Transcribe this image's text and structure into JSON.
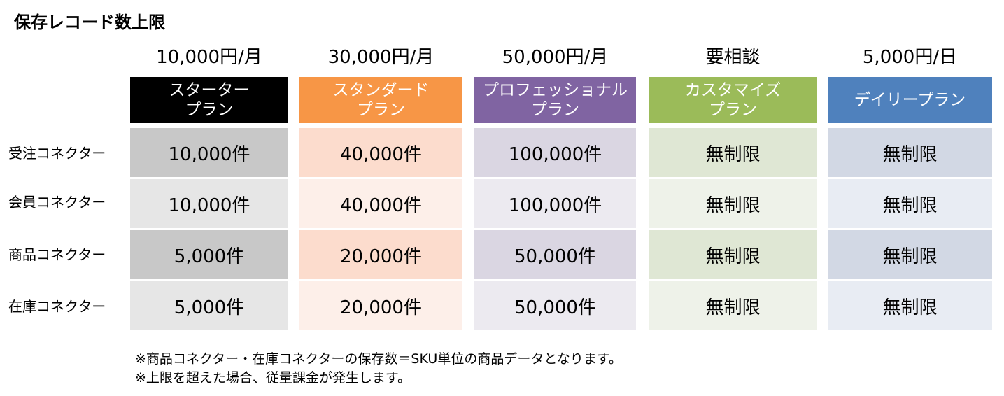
{
  "title": "保存レコード数上限",
  "plans": [
    {
      "price": "10,000円/月",
      "name": "スターター\nプラン",
      "header_color": "#000000",
      "cell_dark": "#c8c8c8",
      "cell_light": "#e6e6e6"
    },
    {
      "price": "30,000円/月",
      "name": "スタンダード\nプラン",
      "header_color": "#f79646",
      "cell_dark": "#fcdccd",
      "cell_light": "#fdefe9"
    },
    {
      "price": "50,000円/月",
      "name": "プロフェッショナル\nプラン",
      "header_color": "#8064a2",
      "cell_dark": "#dad6e2",
      "cell_light": "#eceaf0"
    },
    {
      "price": "要相談",
      "name": "カスタマイズ\nプラン",
      "header_color": "#9bbb59",
      "cell_dark": "#dfe7d4",
      "cell_light": "#eef2e9"
    },
    {
      "price": "5,000円/日",
      "name": "デイリープラン",
      "header_color": "#4f81bd",
      "cell_dark": "#d2d8e4",
      "cell_light": "#e8ecf3"
    }
  ],
  "rows": [
    {
      "label": "受注コネクター",
      "values": [
        "10,000件",
        "40,000件",
        "100,000件",
        "無制限",
        "無制限"
      ]
    },
    {
      "label": "会員コネクター",
      "values": [
        "10,000件",
        "40,000件",
        "100,000件",
        "無制限",
        "無制限"
      ]
    },
    {
      "label": "商品コネクター",
      "values": [
        "5,000件",
        "20,000件",
        "50,000件",
        "無制限",
        "無制限"
      ]
    },
    {
      "label": "在庫コネクター",
      "values": [
        "5,000件",
        "20,000件",
        "50,000件",
        "無制限",
        "無制限"
      ]
    }
  ],
  "notes": [
    "※商品コネクター・在庫コネクターの保存数＝SKU単位の商品データとなります。",
    "※上限を超えた場合、従量課金が発生します。"
  ]
}
